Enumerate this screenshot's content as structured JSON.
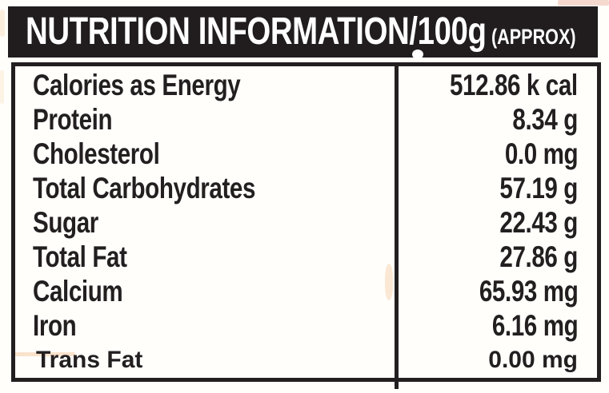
{
  "header": {
    "title": "NUTRITION INFORMATION/100g",
    "suffix": "(APPROX)"
  },
  "table": {
    "rows": [
      {
        "label": "Calories as Energy",
        "value": "512.86 k cal"
      },
      {
        "label": "Protein",
        "value": "8.34 g"
      },
      {
        "label": "Cholesterol",
        "value": "0.0 mg"
      },
      {
        "label": "Total Carbohydrates",
        "value": "57.19 g"
      },
      {
        "label": "Sugar",
        "value": "22.43 g"
      },
      {
        "label": "Total Fat",
        "value": "27.86 g"
      },
      {
        "label": "Calcium",
        "value": "65.93 mg"
      },
      {
        "label": "Iron",
        "value": "6.16 mg"
      },
      {
        "label": "Trans Fat",
        "value": "0.00 mg"
      }
    ]
  },
  "colors": {
    "ink": "#231f20",
    "header_bg": "#211d1e",
    "header_text": "#ffffff",
    "paper": "#fffefb"
  }
}
